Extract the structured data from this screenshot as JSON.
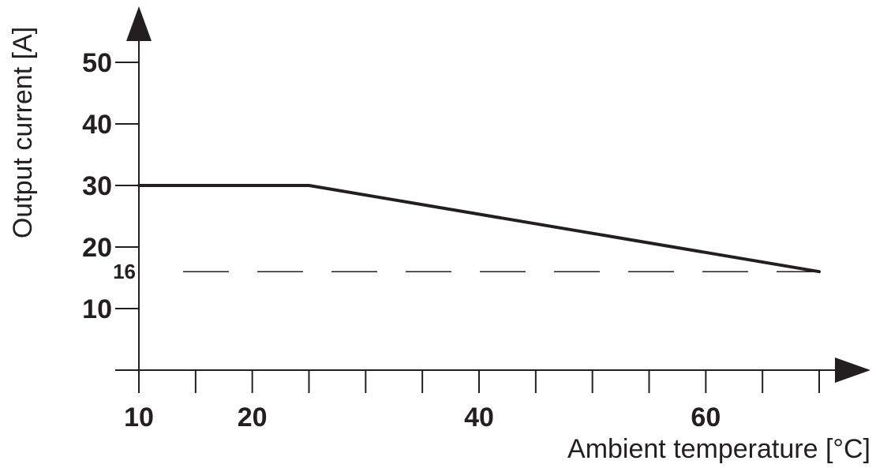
{
  "chart_data": {
    "type": "line",
    "xlabel": "Ambient temperature [°C]",
    "ylabel": "Output current [A]",
    "xlim": [
      10,
      70
    ],
    "ylim": [
      0,
      50
    ],
    "x_ticks_labeled": [
      10,
      20,
      40,
      60
    ],
    "x_ticks_unlabeled": [
      15,
      25,
      30,
      35,
      45,
      50,
      55,
      65,
      70
    ],
    "y_ticks": [
      10,
      20,
      30,
      40,
      50
    ],
    "series": [
      {
        "x": [
          10,
          25,
          70
        ],
        "y": [
          30,
          30,
          16
        ]
      }
    ],
    "reference_lines": [
      {
        "y": 16,
        "label": "16",
        "style": "dashed"
      }
    ],
    "grid": false,
    "line_color": "#231f20"
  }
}
